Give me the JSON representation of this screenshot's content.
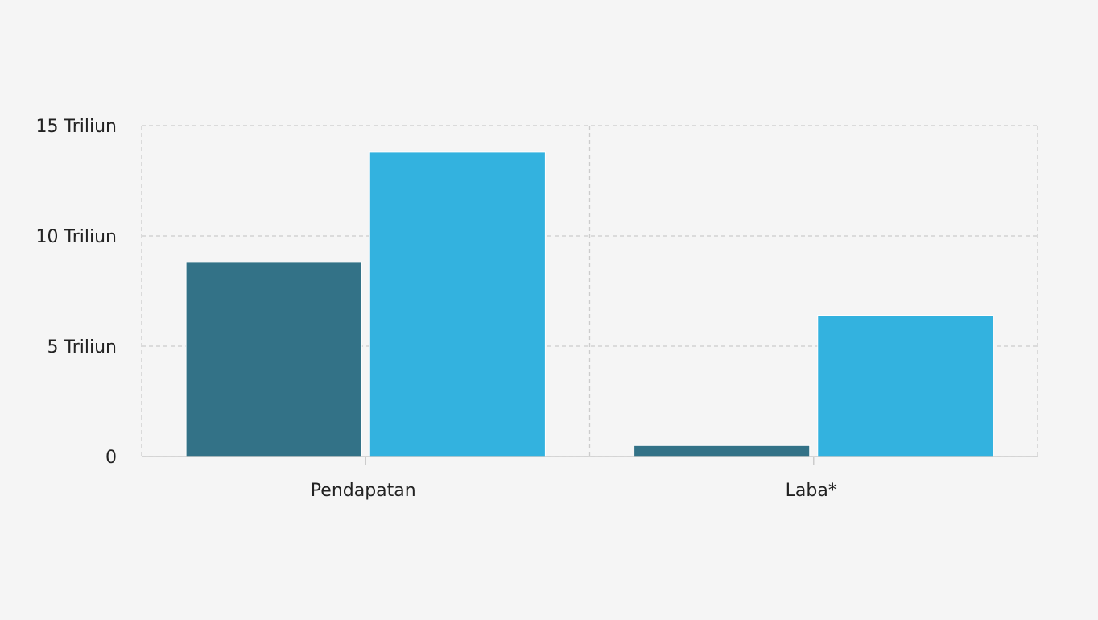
{
  "chart_data": {
    "type": "bar",
    "categories": [
      "Pendapatan",
      "Laba*"
    ],
    "series": [
      {
        "values": [
          8.8,
          0.5
        ],
        "color": "#337287"
      },
      {
        "values": [
          13.8,
          6.4
        ],
        "color": "#33b2df"
      }
    ],
    "ylim": [
      0,
      15
    ],
    "yticks": [
      {
        "value": 0,
        "label": "0"
      },
      {
        "value": 5,
        "label": "5 Triliun"
      },
      {
        "value": 10,
        "label": "10 Triliun"
      },
      {
        "value": 15,
        "label": "15 Triliun"
      }
    ],
    "grid": true,
    "grid_color": "#cccccc",
    "background": "#f5f5f5"
  }
}
